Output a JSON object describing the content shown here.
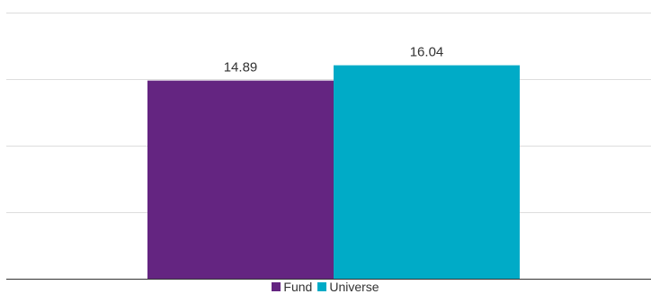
{
  "chart_data": {
    "type": "bar",
    "categories": [
      ""
    ],
    "series": [
      {
        "name": "Fund",
        "values": [
          14.89
        ],
        "color": "#642581"
      },
      {
        "name": "Universe",
        "values": [
          16.04
        ],
        "color": "#00abc7"
      }
    ],
    "title": "",
    "xlabel": "",
    "ylabel": "",
    "ylim": [
      0,
      20
    ],
    "grid": true,
    "legend": "bottom"
  }
}
